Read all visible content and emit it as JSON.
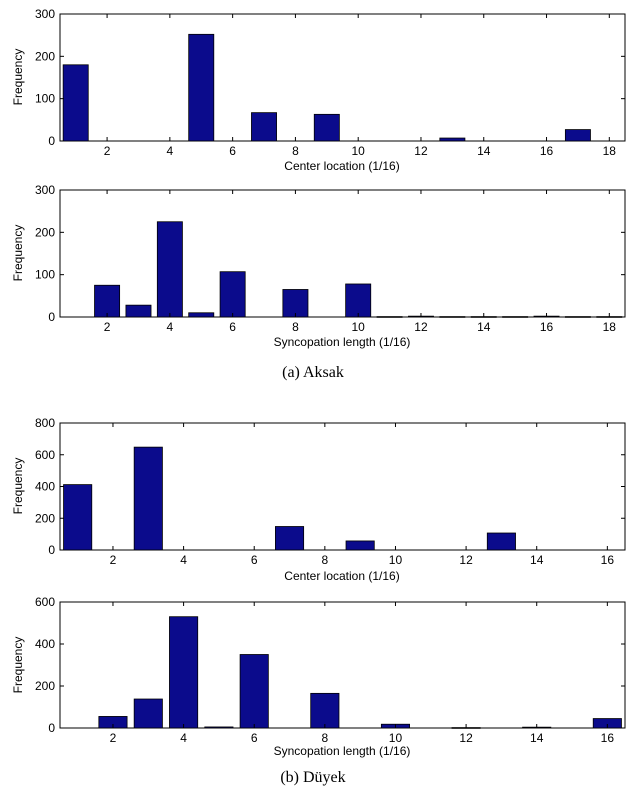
{
  "captions": {
    "a": "(a) Aksak",
    "b": "(b) Düyek"
  },
  "bar_color": "#0b0b8c",
  "chart_data": [
    {
      "type": "bar",
      "xlabel": "Center location (1/16)",
      "ylabel": "Frequency",
      "xlim": [
        0.5,
        18.5
      ],
      "ylim": [
        0,
        300
      ],
      "xticks": [
        2,
        4,
        6,
        8,
        10,
        12,
        14,
        16,
        18
      ],
      "yticks": [
        0,
        100,
        200,
        300
      ],
      "x": [
        1,
        3,
        5,
        7,
        9,
        11,
        13,
        15,
        17
      ],
      "values": [
        180,
        0,
        252,
        67,
        63,
        0,
        7,
        0,
        27
      ]
    },
    {
      "type": "bar",
      "xlabel": "Syncopation length (1/16)",
      "ylabel": "Frequency",
      "xlim": [
        0.5,
        18.5
      ],
      "ylim": [
        0,
        300
      ],
      "xticks": [
        2,
        4,
        6,
        8,
        10,
        12,
        14,
        16,
        18
      ],
      "yticks": [
        0,
        100,
        200,
        300
      ],
      "x": [
        2,
        3,
        4,
        5,
        6,
        7,
        8,
        9,
        10,
        11,
        12,
        13,
        14,
        15,
        16,
        17,
        18
      ],
      "values": [
        75,
        28,
        225,
        10,
        107,
        0,
        65,
        0,
        78,
        1,
        2,
        1,
        1,
        1,
        2,
        1,
        1
      ]
    },
    {
      "type": "bar",
      "xlabel": "Center location (1/16)",
      "ylabel": "Frequency",
      "xlim": [
        0.5,
        16.5
      ],
      "ylim": [
        0,
        800
      ],
      "xticks": [
        2,
        4,
        6,
        8,
        10,
        12,
        14,
        16
      ],
      "yticks": [
        0,
        200,
        400,
        600,
        800
      ],
      "x": [
        1,
        3,
        5,
        7,
        9,
        11,
        13,
        15
      ],
      "values": [
        412,
        648,
        0,
        148,
        57,
        0,
        107,
        0
      ]
    },
    {
      "type": "bar",
      "xlabel": "Syncopation length (1/16)",
      "ylabel": "Frequency",
      "xlim": [
        0.5,
        16.5
      ],
      "ylim": [
        0,
        600
      ],
      "xticks": [
        2,
        4,
        6,
        8,
        10,
        12,
        14,
        16
      ],
      "yticks": [
        0,
        200,
        400,
        600
      ],
      "x": [
        2,
        3,
        4,
        5,
        6,
        7,
        8,
        9,
        10,
        11,
        12,
        13,
        14,
        15,
        16
      ],
      "values": [
        55,
        138,
        530,
        5,
        350,
        0,
        165,
        0,
        18,
        0,
        2,
        0,
        4,
        0,
        45
      ]
    }
  ]
}
